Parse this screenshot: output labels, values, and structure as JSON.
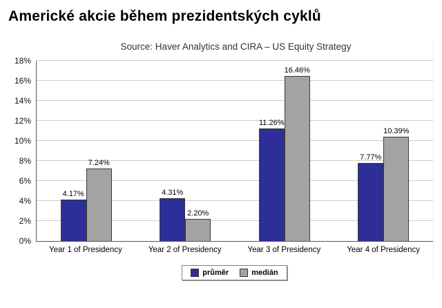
{
  "page": {
    "title": "Americké akcie během prezidentských cyklů"
  },
  "chart_data": {
    "type": "bar",
    "title": "Americké akcie během prezidentských cyklů",
    "source": "Source: Haver Analytics and CIRA – US Equity Strategy",
    "categories": [
      "Year 1 of Presidency",
      "Year 2 of Presidency",
      "Year 3 of Presidency",
      "Year 4 of Presidency"
    ],
    "series": [
      {
        "key": "prumer",
        "name": "průměr",
        "color": "#2e2e99",
        "values": [
          4.17,
          4.31,
          11.26,
          7.77
        ]
      },
      {
        "key": "median",
        "name": "medián",
        "color": "#a3a3a3",
        "values": [
          7.24,
          2.2,
          16.46,
          10.39
        ]
      }
    ],
    "value_suffix": "%",
    "ylim": [
      0,
      18
    ],
    "ytick_step": 2,
    "grid": true,
    "legend_position": "bottom"
  }
}
